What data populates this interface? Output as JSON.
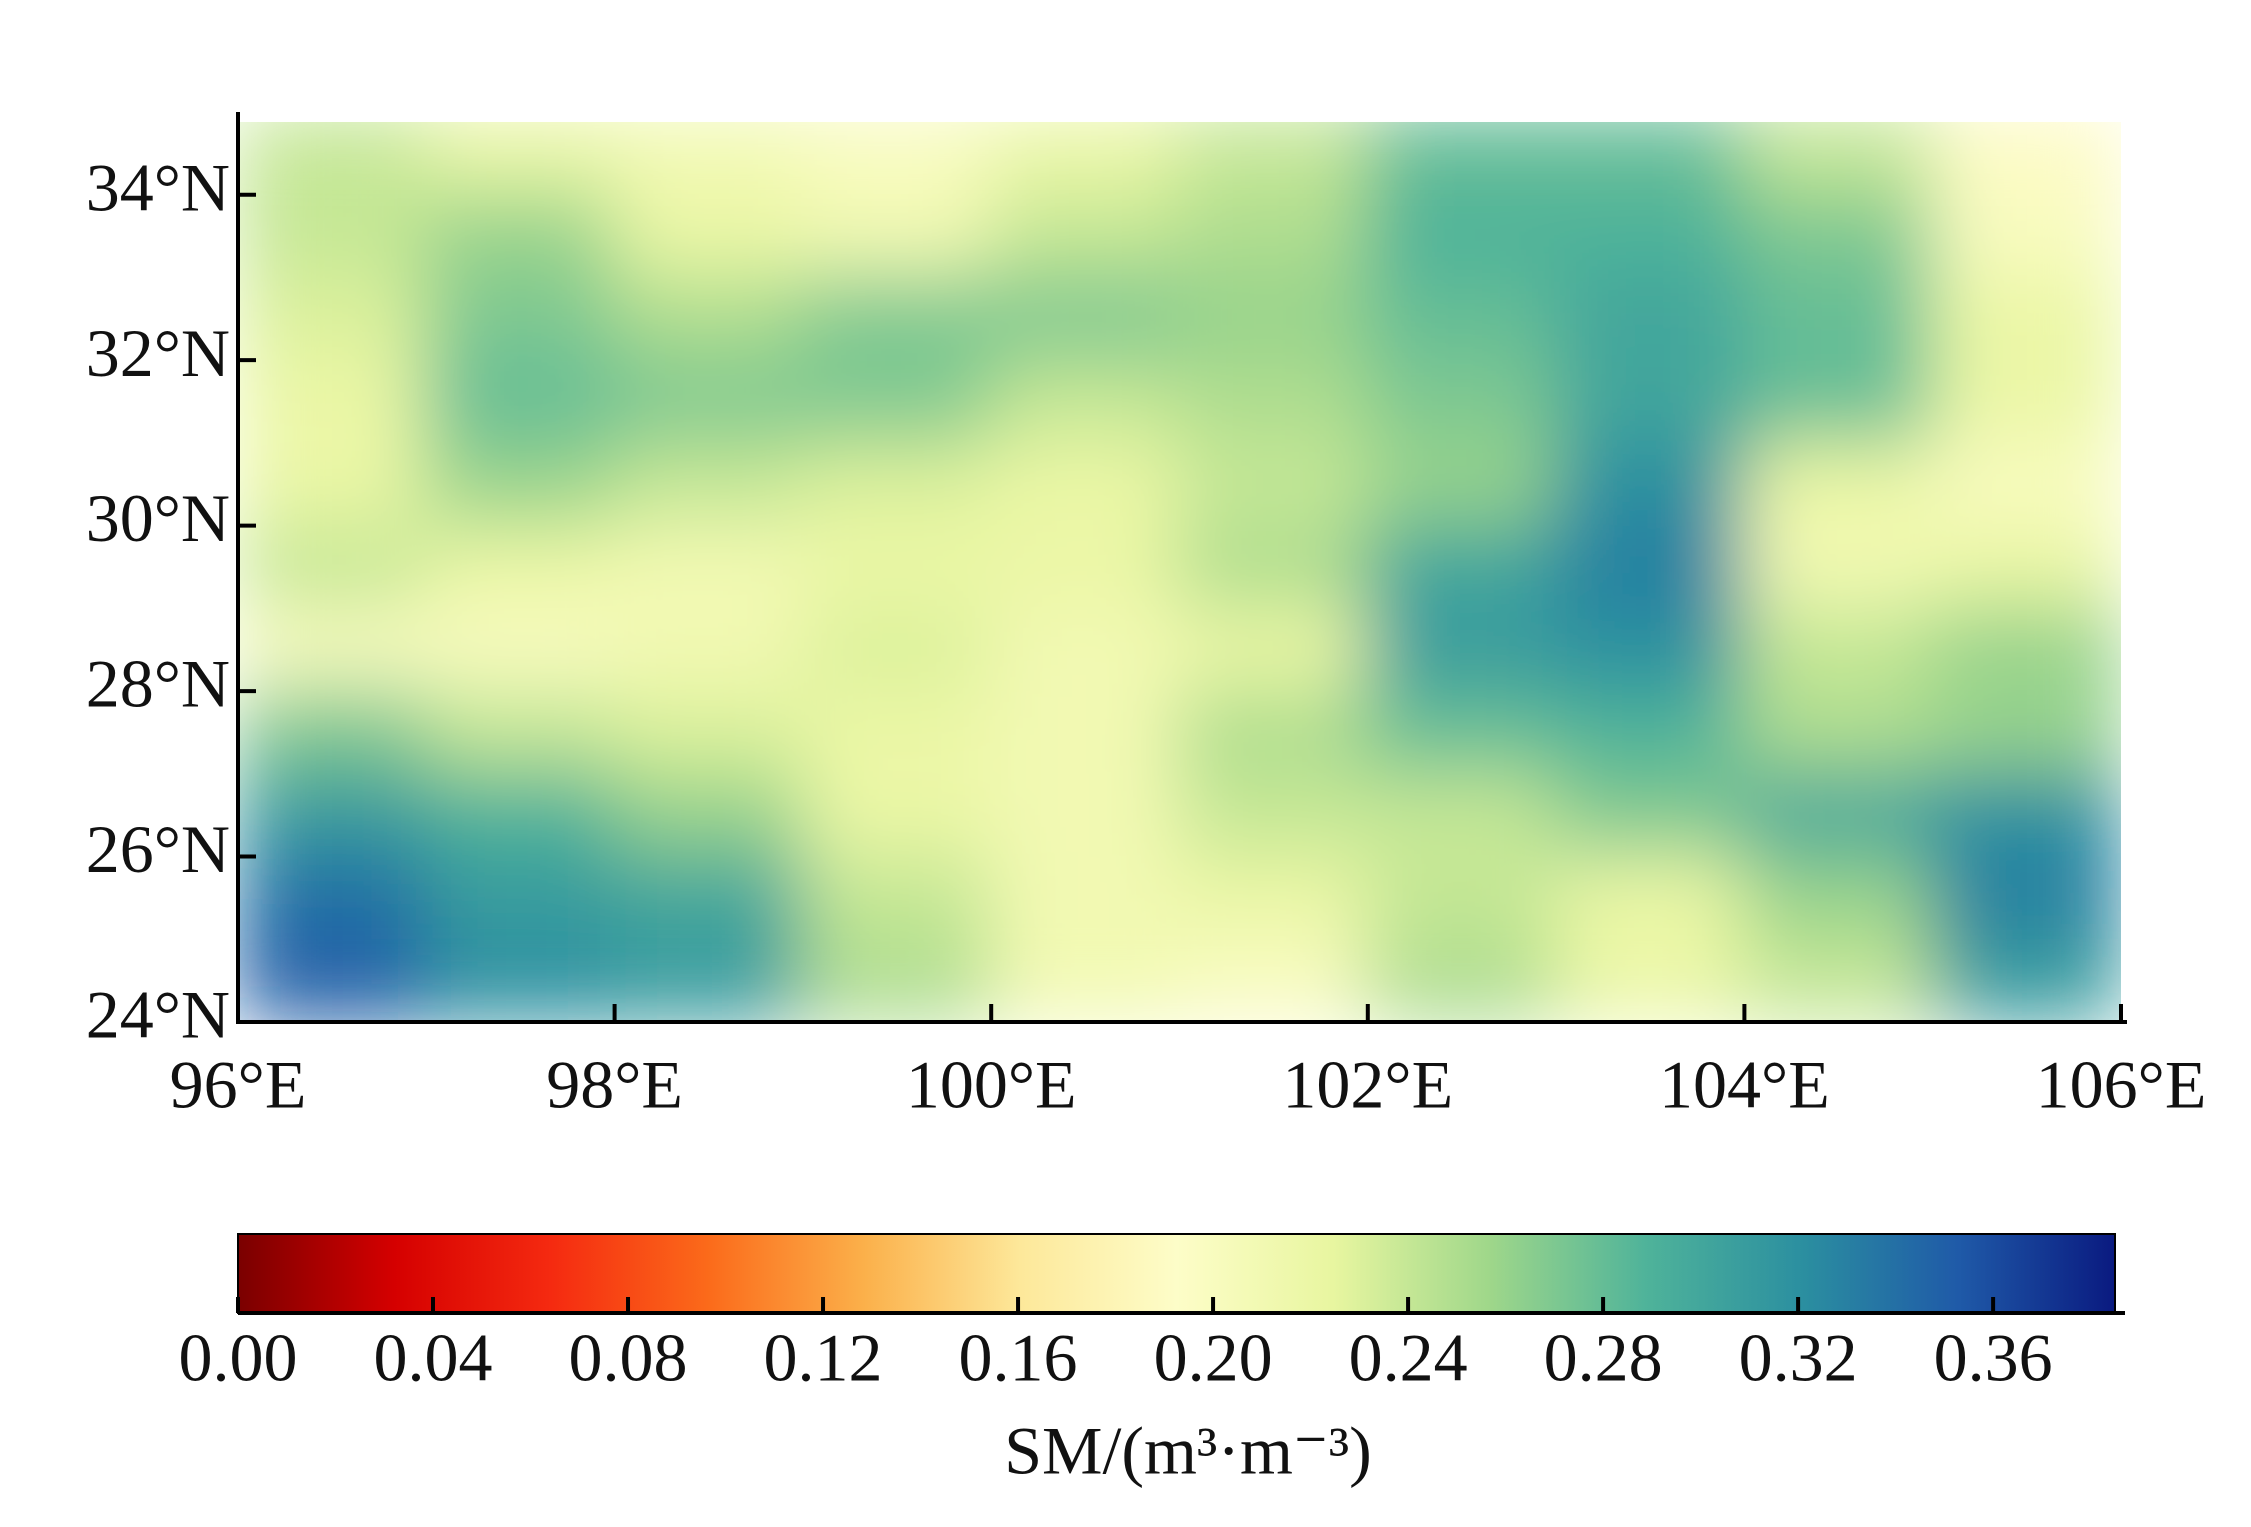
{
  "chart_data": {
    "type": "heatmap",
    "x": [
      96.5,
      97.5,
      98.5,
      99.5,
      100.5,
      101.5,
      102.5,
      103.5,
      104.5,
      105.5
    ],
    "y": [
      34.5,
      33.5,
      32.5,
      31.5,
      30.5,
      29.5,
      28.5,
      27.5,
      26.5,
      25.5,
      24.5
    ],
    "values": [
      [
        0.24,
        0.22,
        0.21,
        0.2,
        0.22,
        0.24,
        0.28,
        0.28,
        0.24,
        0.19
      ],
      [
        0.24,
        0.26,
        0.22,
        0.21,
        0.24,
        0.25,
        0.29,
        0.29,
        0.27,
        0.2
      ],
      [
        0.23,
        0.27,
        0.25,
        0.27,
        0.27,
        0.26,
        0.28,
        0.3,
        0.28,
        0.22
      ],
      [
        0.22,
        0.28,
        0.27,
        0.27,
        0.24,
        0.25,
        0.27,
        0.3,
        0.28,
        0.22
      ],
      [
        0.22,
        0.26,
        0.24,
        0.23,
        0.22,
        0.24,
        0.26,
        0.32,
        0.22,
        0.2
      ],
      [
        0.24,
        0.22,
        0.21,
        0.22,
        0.22,
        0.25,
        0.3,
        0.33,
        0.21,
        0.22
      ],
      [
        0.2,
        0.2,
        0.21,
        0.23,
        0.21,
        0.22,
        0.31,
        0.32,
        0.24,
        0.26
      ],
      [
        0.27,
        0.24,
        0.23,
        0.22,
        0.21,
        0.25,
        0.28,
        0.29,
        0.25,
        0.26
      ],
      [
        0.31,
        0.29,
        0.26,
        0.22,
        0.21,
        0.24,
        0.24,
        0.27,
        0.3,
        0.32
      ],
      [
        0.34,
        0.31,
        0.3,
        0.24,
        0.21,
        0.22,
        0.24,
        0.22,
        0.26,
        0.33
      ],
      [
        0.35,
        0.32,
        0.31,
        0.25,
        0.21,
        0.2,
        0.25,
        0.22,
        0.24,
        0.31
      ]
    ],
    "xlim": [
      96,
      106
    ],
    "ylim": [
      24,
      35
    ],
    "xticks": [
      {
        "value": 96,
        "label": "96°E"
      },
      {
        "value": 98,
        "label": "98°E"
      },
      {
        "value": 100,
        "label": "100°E"
      },
      {
        "value": 102,
        "label": "102°E"
      },
      {
        "value": 104,
        "label": "104°E"
      },
      {
        "value": 106,
        "label": "106°E"
      }
    ],
    "yticks": [
      {
        "value": 24,
        "label": "24°N"
      },
      {
        "value": 26,
        "label": "26°N"
      },
      {
        "value": 28,
        "label": "28°N"
      },
      {
        "value": 30,
        "label": "30°N"
      },
      {
        "value": 32,
        "label": "32°N"
      },
      {
        "value": 34,
        "label": "34°N"
      }
    ],
    "colorbar": {
      "label": "SM/(m³·m⁻³)",
      "lim": [
        0,
        0.385
      ],
      "ticks": [
        {
          "value": 0,
          "label": "0.00"
        },
        {
          "value": 0.04,
          "label": "0.04"
        },
        {
          "value": 0.08,
          "label": "0.08"
        },
        {
          "value": 0.12,
          "label": "0.12"
        },
        {
          "value": 0.16,
          "label": "0.16"
        },
        {
          "value": 0.2,
          "label": "0.20"
        },
        {
          "value": 0.24,
          "label": "0.24"
        },
        {
          "value": 0.28,
          "label": "0.28"
        },
        {
          "value": 0.32,
          "label": "0.32"
        },
        {
          "value": 0.36,
          "label": "0.36"
        }
      ],
      "colormap": [
        "#7a0000",
        "#d50000",
        "#f52a10",
        "#fb6a1a",
        "#fbb04a",
        "#fde89a",
        "#fdfdc8",
        "#e8f6a0",
        "#9fd78a",
        "#4fb39a",
        "#2b8fa0",
        "#1f5aa8",
        "#0a1a80"
      ]
    }
  }
}
